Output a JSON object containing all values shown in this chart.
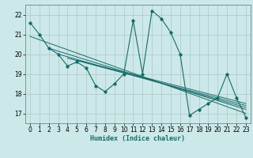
{
  "xlabel": "Humidex (Indice chaleur)",
  "ylabel": "",
  "bg_color": "#cce8e8",
  "grid_color": "#b0cccc",
  "line_color": "#1a6b6b",
  "xlim": [
    -0.5,
    23.5
  ],
  "ylim": [
    16.5,
    22.5
  ],
  "xticks": [
    0,
    1,
    2,
    3,
    4,
    5,
    6,
    7,
    8,
    9,
    10,
    11,
    12,
    13,
    14,
    15,
    16,
    17,
    18,
    19,
    20,
    21,
    22,
    23
  ],
  "yticks": [
    17,
    18,
    19,
    20,
    21,
    22
  ],
  "main_series": [
    [
      0,
      21.6
    ],
    [
      1,
      21.0
    ],
    [
      2,
      20.3
    ],
    [
      3,
      20.0
    ],
    [
      4,
      19.4
    ],
    [
      5,
      19.6
    ],
    [
      6,
      19.3
    ],
    [
      7,
      18.4
    ],
    [
      8,
      18.1
    ],
    [
      9,
      18.5
    ],
    [
      10,
      19.0
    ],
    [
      11,
      21.7
    ],
    [
      12,
      19.0
    ],
    [
      13,
      22.2
    ],
    [
      14,
      21.8
    ],
    [
      15,
      21.1
    ],
    [
      16,
      20.0
    ],
    [
      17,
      16.9
    ],
    [
      18,
      17.2
    ],
    [
      19,
      17.5
    ],
    [
      20,
      17.8
    ],
    [
      21,
      19.0
    ],
    [
      22,
      17.8
    ],
    [
      23,
      16.8
    ]
  ],
  "trend_lines": [
    [
      [
        0,
        20.9
      ],
      [
        23,
        17.0
      ]
    ],
    [
      [
        2,
        20.3
      ],
      [
        23,
        17.2
      ]
    ],
    [
      [
        3,
        20.0
      ],
      [
        23,
        17.3
      ]
    ],
    [
      [
        4,
        19.8
      ],
      [
        23,
        17.4
      ]
    ],
    [
      [
        5,
        19.7
      ],
      [
        23,
        17.5
      ]
    ]
  ]
}
